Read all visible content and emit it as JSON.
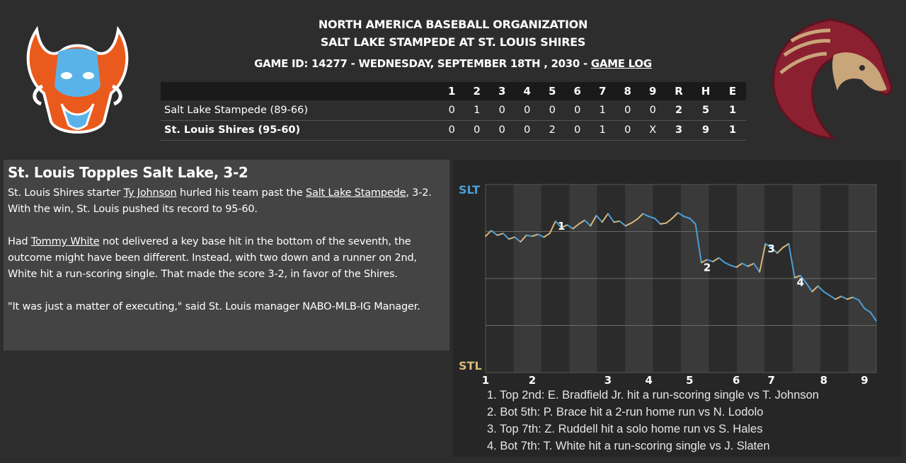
{
  "header": {
    "org": "NORTH AMERICA BASEBALL ORGANIZATION",
    "matchup": "SALT LAKE STAMPEDE AT ST. LOUIS SHIRES",
    "game_info": "GAME ID: 14277 - WEDNESDAY, SEPTEMBER 18TH , 2030 - ",
    "game_log_link": "GAME LOG"
  },
  "logos": {
    "away": "bison-logo",
    "home": "horse-logo"
  },
  "boxscore": {
    "columns": [
      "1",
      "2",
      "3",
      "4",
      "5",
      "6",
      "7",
      "8",
      "9",
      "R",
      "H",
      "E"
    ],
    "rows": [
      {
        "team": "Salt Lake Stampede (89-66)",
        "innings": [
          "0",
          "1",
          "0",
          "0",
          "0",
          "0",
          "1",
          "0",
          "0"
        ],
        "R": "2",
        "H": "5",
        "E": "1"
      },
      {
        "team": "St. Louis Shires (95-60)",
        "innings": [
          "0",
          "0",
          "0",
          "0",
          "2",
          "0",
          "1",
          "0",
          "X"
        ],
        "R": "3",
        "H": "9",
        "E": "1"
      }
    ]
  },
  "recap": {
    "headline": "St. Louis Topples Salt Lake, 3-2",
    "p1_a": "St. Louis Shires starter ",
    "p1_link1": "Ty Johnson",
    "p1_b": " hurled his team past the ",
    "p1_link2": "Salt Lake Stampede",
    "p1_c": ", 3-2. With the win, St. Louis pushed its record to 95-60.",
    "p2_a": "Had ",
    "p2_link": "Tommy White",
    "p2_b": " not delivered a key base hit in the bottom of the seventh, the outcome might have been different. Instead, with two down and a runner on 2nd, White hit a run-scoring single. That made the score 3-2, in favor of the Shires.",
    "p3": "\"It was just a matter of executing,\" said St. Louis manager NABO-MLB-IG Manager."
  },
  "chart_data": {
    "type": "line",
    "top_label": "SLT",
    "bottom_label": "STL",
    "x_tick_labels": [
      "1",
      "2",
      "3",
      "4",
      "5",
      "6",
      "7",
      "8",
      "9"
    ],
    "colors": {
      "away": "#4a9fd8",
      "home": "#d8b87a"
    },
    "series": [
      {
        "values": [
          0.45,
          0.51,
          0.46,
          0.48,
          0.42,
          0.44,
          0.39,
          0.46,
          0.45,
          0.47,
          0.44,
          0.48,
          0.61,
          0.54,
          0.57,
          0.53,
          0.58,
          0.62,
          0.56,
          0.67,
          0.6,
          0.69,
          0.6,
          0.61,
          0.56,
          0.59,
          0.63,
          0.69,
          0.66,
          0.64,
          0.58,
          0.59,
          0.64,
          0.7,
          0.66,
          0.64,
          0.58,
          0.17,
          0.2,
          0.18,
          0.22,
          0.17,
          0.14,
          0.12,
          0.16,
          0.13,
          0.16,
          0.07,
          0.37,
          0.33,
          0.27,
          0.33,
          0.37,
          0.01,
          0.03,
          -0.05,
          -0.14,
          -0.08,
          -0.14,
          -0.18,
          -0.22,
          -0.19,
          -0.22,
          -0.2,
          -0.23,
          -0.32,
          -0.36,
          -0.45
        ]
      }
    ],
    "annotations": [
      "1. Top 2nd: E. Bradfield Jr. hit a run-scoring single vs T. Johnson",
      "2. Bot 5th: P. Brace hit a 2-run home run vs N. Lodolo",
      "3. Top 7th: Z. Ruddell hit a solo home run vs S. Hales",
      "4. Bot 7th: T. White hit a run-scoring single vs J. Slaten"
    ],
    "marker_labels": [
      "1",
      "2",
      "3",
      "4"
    ]
  }
}
